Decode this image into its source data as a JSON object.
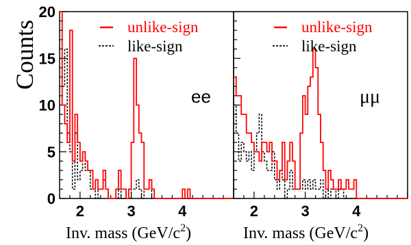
{
  "chart_data": {
    "type": "histogram",
    "ylabel": "Counts",
    "y_ticks": [
      0,
      5,
      10,
      15,
      20
    ],
    "ylim": [
      0,
      20
    ],
    "grid": false,
    "legend_placement": "top-right",
    "colors": {
      "unlike": "#ff0000",
      "like": "#000000"
    },
    "styles": {
      "unlike": "solid",
      "like": "dashed"
    },
    "panels": [
      {
        "channel_label": "ee",
        "xlabel": "Inv. mass (GeV/c²)",
        "xlabel_main": "Inv. mass (GeV/c",
        "xlabel_sup": "2",
        "xlabel_end": ")",
        "x_ticks": [
          2,
          3,
          4
        ],
        "xlim": [
          1.6,
          5.0
        ],
        "bin_width": 0.05,
        "series": [
          {
            "name": "unlike-sign",
            "values": [
              20,
              10,
              8,
              6,
              18,
              4,
              9,
              6,
              4,
              5,
              4,
              3,
              3,
              1,
              2,
              1,
              1,
              3,
              1,
              0,
              0,
              0,
              1,
              3,
              1,
              1,
              0,
              1,
              6,
              15,
              10,
              7,
              6,
              1,
              1,
              2,
              1,
              0,
              0,
              0,
              0,
              0,
              0,
              0,
              0,
              0,
              0,
              0,
              1,
              0,
              1,
              0,
              0,
              0,
              0,
              0,
              0,
              0,
              0,
              0,
              0,
              0,
              0,
              0,
              0,
              0,
              0,
              0
            ]
          },
          {
            "name": "like-sign",
            "values": [
              15,
              12,
              16,
              7,
              5,
              1,
              7,
              2,
              3,
              5,
              3,
              3,
              1,
              1,
              0,
              1,
              1,
              2,
              1,
              0,
              0,
              0,
              0,
              1,
              0,
              0,
              1,
              0,
              1,
              1,
              2,
              1,
              0,
              1,
              1,
              2,
              0,
              0,
              0,
              0,
              0,
              0,
              0,
              0,
              0,
              0,
              0,
              0,
              0,
              0,
              0,
              0,
              0,
              0,
              0,
              0,
              0,
              0,
              0,
              0,
              0,
              0,
              0,
              0,
              0,
              0,
              0,
              0
            ]
          }
        ]
      },
      {
        "channel_label": "μμ",
        "xlabel": "Inv. mass (GeV/c²)",
        "xlabel_main": "Inv. mass (GeV/c",
        "xlabel_sup": "2",
        "xlabel_end": ")",
        "x_ticks": [
          2,
          3,
          4
        ],
        "xlim": [
          1.6,
          5.0
        ],
        "bin_width": 0.05,
        "series": [
          {
            "name": "unlike-sign",
            "values": [
              13,
              11,
              11,
              9,
              9,
              7,
              7,
              6,
              5,
              5,
              4,
              6,
              6,
              5,
              6,
              4,
              4,
              2,
              3,
              6,
              2,
              4,
              6,
              4,
              1,
              1,
              7,
              11,
              9,
              12,
              13,
              16,
              14,
              9,
              6,
              3,
              1,
              3,
              2,
              1,
              1,
              2,
              1,
              1,
              2,
              1,
              1,
              2,
              0,
              0,
              0,
              0,
              0,
              0,
              0,
              0,
              0,
              0,
              0,
              0,
              0,
              0,
              0,
              0,
              0,
              0,
              0,
              0
            ]
          },
          {
            "name": "like-sign",
            "values": [
              10,
              7,
              4,
              6,
              5,
              4,
              5,
              3,
              5,
              7,
              9,
              5,
              4,
              3,
              3,
              5,
              2,
              1,
              3,
              2,
              0,
              1,
              3,
              1,
              1,
              1,
              1,
              2,
              1,
              2,
              1,
              2,
              1,
              1,
              2,
              0,
              1,
              0,
              1,
              1,
              0,
              1,
              1,
              0,
              0,
              0,
              0,
              0,
              0,
              0,
              0,
              0,
              0,
              0,
              0,
              0,
              0,
              0,
              0,
              0,
              0,
              0,
              0,
              0,
              0,
              0,
              0,
              0
            ]
          }
        ]
      }
    ]
  }
}
